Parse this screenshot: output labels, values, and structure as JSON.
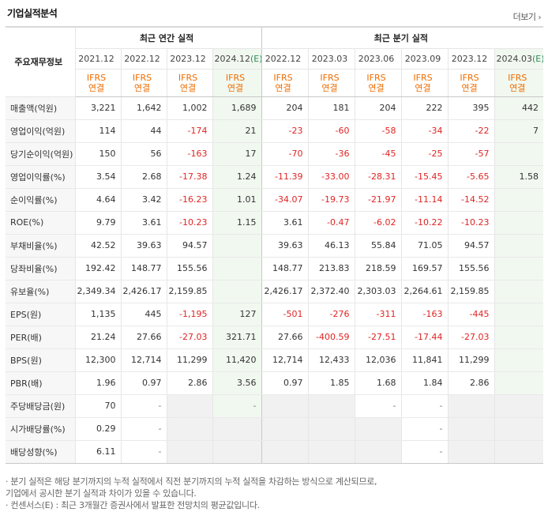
{
  "header": {
    "title": "기업실적분석",
    "more_label": "더보기"
  },
  "table": {
    "corner_label": "주요재무정보",
    "group_annual": "최근 연간 실적",
    "group_quarterly": "최근 분기 실적",
    "periods": [
      "2021.12",
      "2022.12",
      "2023.12",
      "2024.12",
      "2022.12",
      "2023.03",
      "2023.06",
      "2023.09",
      "2023.12",
      "2024.03"
    ],
    "estimate_mark": "(E)",
    "ifrs_top": "IFRS",
    "ifrs_bottom": "연결",
    "rows": [
      {
        "label": "매출액(억원)",
        "values": [
          "3,221",
          "1,642",
          "1,002",
          "1,689",
          "204",
          "181",
          "204",
          "222",
          "395",
          "442"
        ]
      },
      {
        "label": "영업이익(억원)",
        "values": [
          "114",
          "44",
          "-174",
          "21",
          "-23",
          "-60",
          "-58",
          "-34",
          "-22",
          "7"
        ]
      },
      {
        "label": "당기순이익(억원)",
        "values": [
          "150",
          "56",
          "-163",
          "17",
          "-70",
          "-36",
          "-45",
          "-25",
          "-57",
          ""
        ]
      },
      {
        "label": "영업이익률(%)",
        "values": [
          "3.54",
          "2.68",
          "-17.38",
          "1.24",
          "-11.39",
          "-33.00",
          "-28.31",
          "-15.45",
          "-5.65",
          "1.58"
        ]
      },
      {
        "label": "순이익률(%)",
        "values": [
          "4.64",
          "3.42",
          "-16.23",
          "1.01",
          "-34.07",
          "-19.73",
          "-21.97",
          "-11.14",
          "-14.52",
          ""
        ]
      },
      {
        "label": "ROE(%)",
        "values": [
          "9.79",
          "3.61",
          "-10.23",
          "1.15",
          "3.61",
          "-0.47",
          "-6.02",
          "-10.22",
          "-10.23",
          ""
        ]
      },
      {
        "label": "부채비율(%)",
        "values": [
          "42.52",
          "39.63",
          "94.57",
          "",
          "39.63",
          "46.13",
          "55.84",
          "71.05",
          "94.57",
          ""
        ]
      },
      {
        "label": "당좌비율(%)",
        "values": [
          "192.42",
          "148.77",
          "155.56",
          "",
          "148.77",
          "213.83",
          "218.59",
          "169.57",
          "155.56",
          ""
        ]
      },
      {
        "label": "유보율(%)",
        "values": [
          "2,349.34",
          "2,426.17",
          "2,159.85",
          "",
          "2,426.17",
          "2,372.40",
          "2,303.03",
          "2,264.61",
          "2,159.85",
          ""
        ]
      },
      {
        "label": "EPS(원)",
        "values": [
          "1,135",
          "445",
          "-1,195",
          "127",
          "-501",
          "-276",
          "-311",
          "-163",
          "-445",
          ""
        ]
      },
      {
        "label": "PER(배)",
        "values": [
          "21.24",
          "27.66",
          "-27.03",
          "321.71",
          "27.66",
          "-400.59",
          "-27.51",
          "-17.44",
          "-27.03",
          ""
        ]
      },
      {
        "label": "BPS(원)",
        "values": [
          "12,300",
          "12,714",
          "11,299",
          "11,420",
          "12,714",
          "12,433",
          "12,036",
          "11,841",
          "11,299",
          ""
        ]
      },
      {
        "label": "PBR(배)",
        "values": [
          "1.96",
          "0.97",
          "2.86",
          "3.56",
          "0.97",
          "1.85",
          "1.68",
          "1.84",
          "2.86",
          ""
        ]
      },
      {
        "label": "주당배당금(원)",
        "values": [
          "70",
          "-",
          "",
          "-",
          "",
          "",
          "-",
          "-",
          "",
          ""
        ]
      },
      {
        "label": "시가배당률(%)",
        "values": [
          "0.29",
          "-",
          "",
          "",
          "",
          "",
          "",
          "-",
          "",
          ""
        ]
      },
      {
        "label": "배당성향(%)",
        "values": [
          "6.11",
          "-",
          "",
          "",
          "",
          "",
          "",
          "-",
          "",
          ""
        ]
      }
    ]
  },
  "notes": [
    "· 분기 실적은 해당 분기까지의 누적 실적에서 직전 분기까지의 누적 실적을 차감하는 방식으로 계산되므로,",
    "  기업에서 공시한 분기 실적과 차이가 있을 수 있습니다.",
    "· 컨센서스(E) : 최근 3개월간 증권사에서 발표한 전망치의 평균값입니다."
  ],
  "colors": {
    "negative": "#e02424",
    "ifrs": "#ef6c00",
    "estimate_bg": "#f1f8f0",
    "estimate_mark": "#2e8b57"
  }
}
